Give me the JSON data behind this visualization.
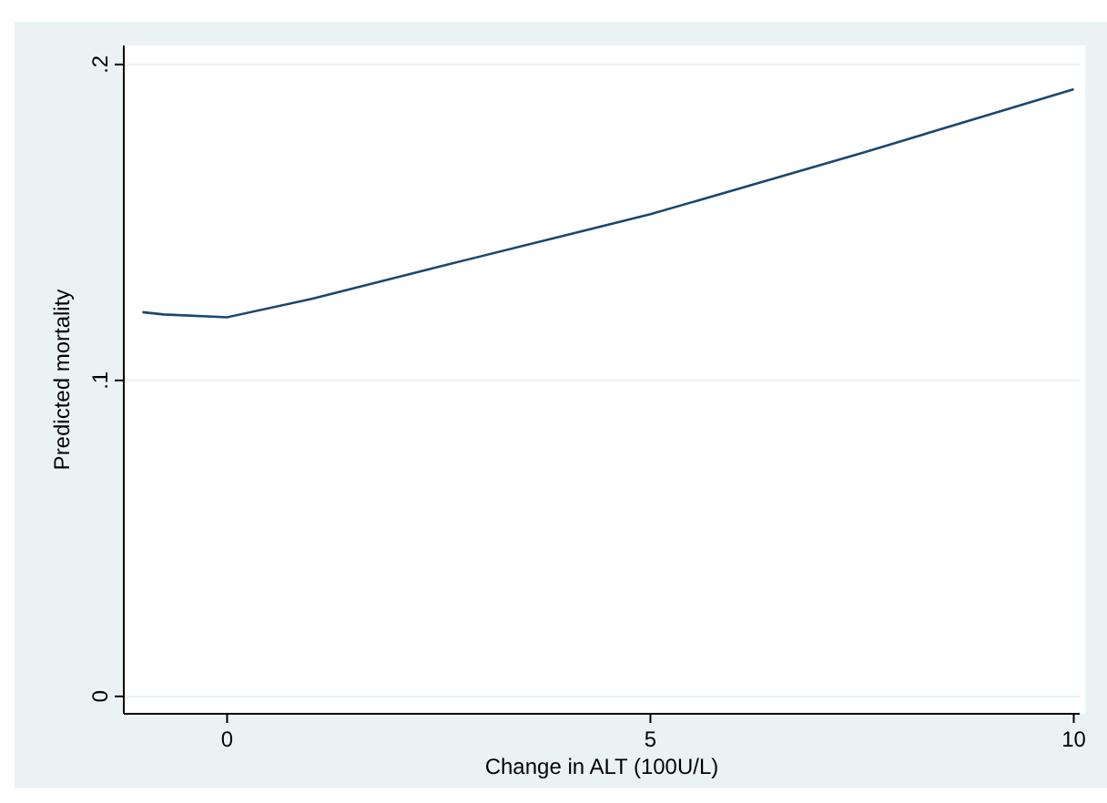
{
  "chart_data": {
    "type": "line",
    "xlabel": "Change in ALT (100U/L)",
    "ylabel": "Predicted mortality",
    "x": [
      -1,
      -0.75,
      0,
      1,
      2.5,
      5,
      7.5,
      10
    ],
    "series": [
      {
        "color": "#1a476f",
        "values": [
          0.1216,
          0.1209,
          0.12,
          0.1258,
          0.136,
          0.1526,
          0.172,
          0.1922
        ]
      }
    ],
    "xlim": [
      -1.22,
      10.07
    ],
    "ylim": [
      -0.0055,
      0.206
    ],
    "xticks": [
      0,
      5,
      10
    ],
    "yticks": [
      0,
      {
        "value": 0.1,
        "label": ".1"
      },
      {
        "value": 0.2,
        "label": ".2"
      }
    ],
    "grid": "y"
  }
}
